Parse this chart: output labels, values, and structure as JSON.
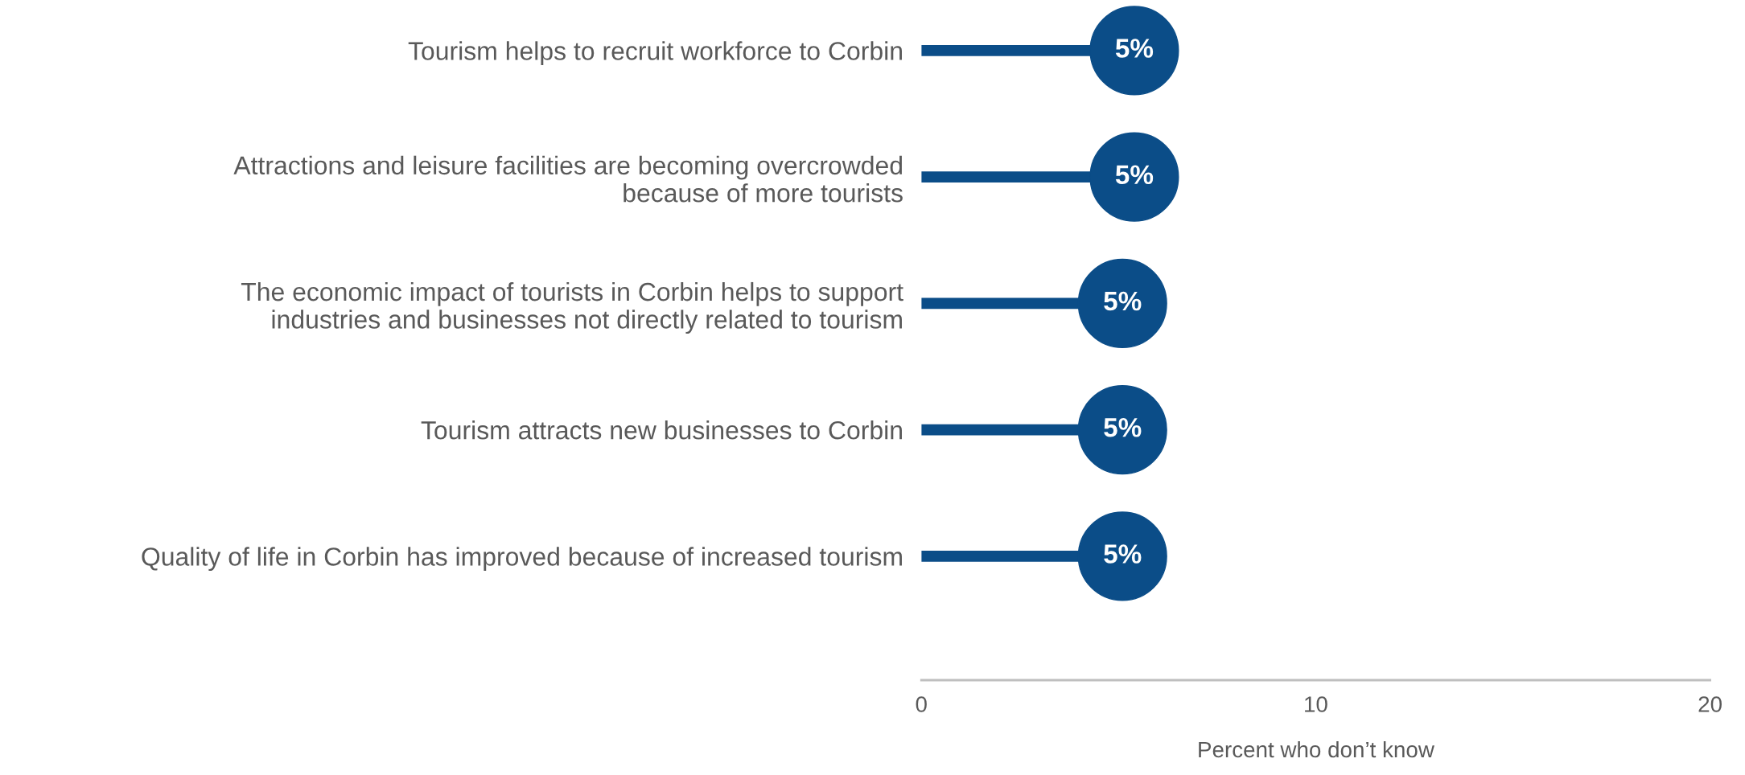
{
  "chart_data": {
    "type": "lollipop",
    "orientation": "horizontal",
    "categories": [
      "Tourism helps to recruit workforce to Corbin",
      "Attractions and leisure facilities are becoming overcrowded\nbecause of more tourists",
      "The economic impact of tourists in Corbin helps to support\nindustries and businesses not directly related to tourism",
      "Tourism attracts new businesses to Corbin",
      "Quality of life in Corbin has improved because of increased tourism"
    ],
    "values": [
      5.4,
      5.4,
      5.1,
      5.1,
      5.1
    ],
    "value_labels": [
      "5%",
      "5%",
      "5%",
      "5%",
      "5%"
    ],
    "color": "#0b4d88",
    "xlim": [
      0,
      20
    ],
    "xticks": [
      0,
      10,
      20
    ],
    "xlabel": "Percent who don’t know",
    "grid": false
  }
}
